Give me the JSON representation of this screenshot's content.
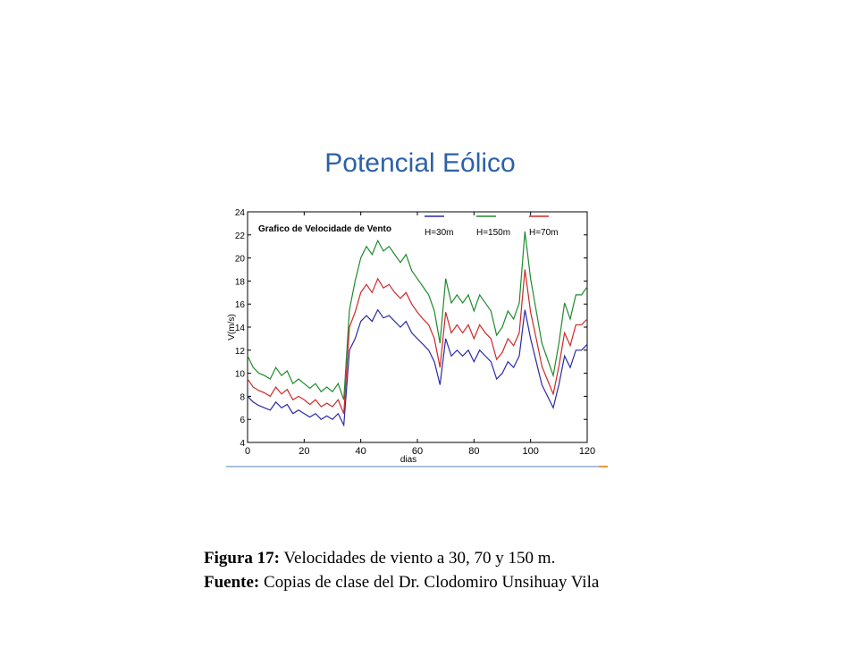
{
  "slide": {
    "title": "Potencial Eólico",
    "caption": [
      {
        "label": "Figura 17:",
        "text": "Velocidades de viento a 30, 70 y 150 m."
      },
      {
        "label": "Fuente:",
        "text": "Copias de clase del Dr. Clodomiro Unsihuay Vila"
      }
    ]
  },
  "chart_data": {
    "type": "line",
    "title": "Grafico de Velocidade de Vento",
    "x_label": "dias",
    "y_label": "V(m/s)",
    "x": [
      0,
      2,
      4,
      6,
      8,
      10,
      12,
      14,
      16,
      18,
      20,
      22,
      24,
      26,
      28,
      30,
      32,
      34,
      36,
      38,
      40,
      42,
      44,
      46,
      48,
      50,
      52,
      54,
      56,
      58,
      60,
      62,
      64,
      66,
      68,
      70,
      72,
      74,
      76,
      78,
      80,
      82,
      84,
      86,
      88,
      90,
      92,
      94,
      96,
      98,
      100,
      102,
      104,
      106,
      108,
      110,
      112,
      114,
      116,
      118,
      120
    ],
    "series": [
      {
        "name": "H=30m",
        "color": "#2a2aa8",
        "values": [
          8,
          7.5,
          7.2,
          7,
          6.8,
          7.5,
          7,
          7.3,
          6.5,
          6.8,
          6.5,
          6.2,
          6.5,
          6,
          6.3,
          6,
          6.5,
          5.5,
          12,
          13,
          14.5,
          15,
          14.5,
          15.5,
          14.8,
          15,
          14.5,
          14,
          14.5,
          13.5,
          13,
          12.5,
          12,
          11,
          9,
          13,
          11.5,
          12,
          11.5,
          12,
          11,
          12,
          11.5,
          11,
          9.5,
          10,
          11,
          10.5,
          11.5,
          15.5,
          13,
          11,
          9,
          8,
          7,
          9,
          11.5,
          10.5,
          12,
          12,
          12.5
        ]
      },
      {
        "name": "H=150m",
        "color": "#1e8a2e",
        "values": [
          11.5,
          10.5,
          10,
          9.8,
          9.5,
          10.5,
          9.8,
          10.2,
          9.1,
          9.5,
          9.1,
          8.7,
          9.1,
          8.4,
          8.8,
          8.4,
          9.1,
          7.7,
          15.5,
          18,
          20,
          21,
          20.3,
          21.5,
          20.6,
          21,
          20.3,
          19.6,
          20.3,
          18.9,
          18.2,
          17.5,
          16.8,
          15.4,
          12.6,
          18.2,
          16.1,
          16.8,
          16.1,
          16.8,
          15.4,
          16.8,
          16.1,
          15.4,
          13.3,
          14,
          15.4,
          14.7,
          16.1,
          22.3,
          18.2,
          15.4,
          12.6,
          11.2,
          9.8,
          12.6,
          16.1,
          14.7,
          16.8,
          16.8,
          17.5
        ]
      },
      {
        "name": "H=70m",
        "color": "#d02828",
        "values": [
          9.5,
          8.8,
          8.5,
          8.3,
          8,
          8.8,
          8.2,
          8.6,
          7.7,
          8,
          7.7,
          7.3,
          7.7,
          7.1,
          7.4,
          7.1,
          7.7,
          6.5,
          14,
          15.3,
          17,
          17.7,
          17,
          18.2,
          17.4,
          17.7,
          17,
          16.5,
          17,
          16,
          15.3,
          14.7,
          14.2,
          13,
          10.5,
          15.3,
          13.5,
          14.2,
          13.5,
          14.2,
          13,
          14.2,
          13.5,
          13,
          11.2,
          11.8,
          13,
          12.4,
          13.5,
          19,
          15.3,
          13,
          10.6,
          9.4,
          8.2,
          10.6,
          13.5,
          12.4,
          14.2,
          14.2,
          14.7
        ]
      }
    ],
    "xlim": [
      0,
      120
    ],
    "xticks": [
      0,
      20,
      40,
      60,
      80,
      100,
      120
    ],
    "ylim": [
      4,
      24
    ],
    "yticks": [
      4,
      6,
      8,
      10,
      12,
      14,
      16,
      18,
      20,
      22,
      24
    ]
  }
}
